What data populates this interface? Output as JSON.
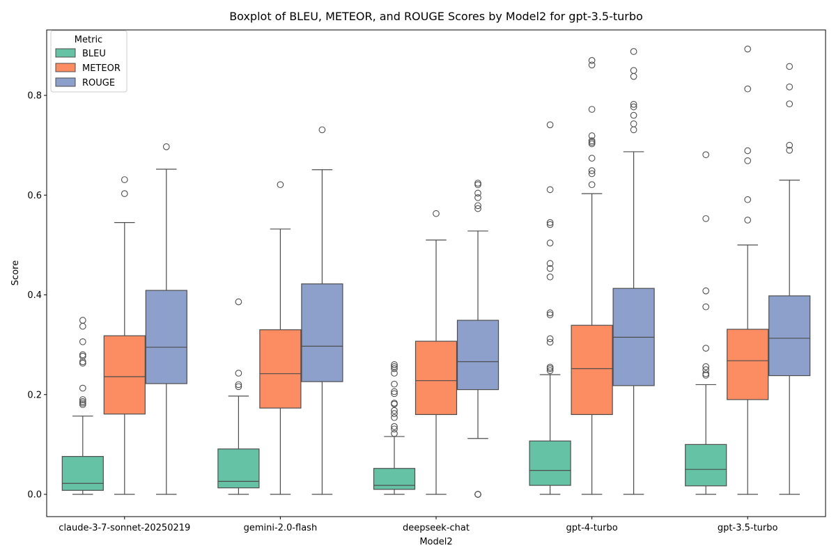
{
  "chart_data": {
    "type": "boxplot",
    "title": "Boxplot of BLEU, METEOR, and ROUGE Scores by Model2 for gpt-3.5-turbo",
    "xlabel": "Model2",
    "ylabel": "Score",
    "ylim": [
      -0.045,
      0.945
    ],
    "yticks": [
      "0.0",
      "0.2",
      "0.4",
      "0.6",
      "0.8"
    ],
    "legend": {
      "title": "Metric",
      "position": "top-left",
      "entries": [
        "BLEU",
        "METEOR",
        "ROUGE"
      ]
    },
    "colors": {
      "BLEU": "#66c2a5",
      "METEOR": "#fc8d62",
      "ROUGE": "#8da0cb",
      "edge": "#4d4d4d"
    },
    "categories": [
      "claude-3-7-sonnet-20250219",
      "gemini-2.0-flash",
      "deepseek-chat",
      "gpt-4-turbo",
      "gpt-3.5-turbo"
    ],
    "series": [
      {
        "name": "BLEU",
        "boxes": [
          {
            "whislo": 0.0,
            "q1": 0.008,
            "med": 0.022,
            "q3": 0.076,
            "whishi": 0.157,
            "fliers": [
              0.349,
              0.337,
              0.306,
              0.28,
              0.277,
              0.266,
              0.263,
              0.213,
              0.19,
              0.186,
              0.183,
              0.18
            ]
          },
          {
            "whislo": 0.0,
            "q1": 0.013,
            "med": 0.026,
            "q3": 0.091,
            "whishi": 0.197,
            "fliers": [
              0.386,
              0.243,
              0.22,
              0.216
            ]
          },
          {
            "whislo": 0.0,
            "q1": 0.01,
            "med": 0.018,
            "q3": 0.052,
            "whishi": 0.116,
            "fliers": [
              0.26,
              0.256,
              0.252,
              0.243,
              0.221,
              0.206,
              0.202,
              0.183,
              0.181,
              0.168,
              0.162,
              0.154,
              0.136,
              0.131,
              0.122
            ]
          },
          {
            "whislo": 0.0,
            "q1": 0.018,
            "med": 0.048,
            "q3": 0.107,
            "whishi": 0.24,
            "fliers": [
              0.741,
              0.611,
              0.545,
              0.541,
              0.504,
              0.463,
              0.453,
              0.436,
              0.364,
              0.36,
              0.312,
              0.305,
              0.255,
              0.252,
              0.248
            ]
          },
          {
            "whislo": 0.0,
            "q1": 0.017,
            "med": 0.05,
            "q3": 0.1,
            "whishi": 0.22,
            "fliers": [
              0.681,
              0.553,
              0.408,
              0.376,
              0.293,
              0.256,
              0.25,
              0.242,
              0.239
            ]
          }
        ]
      },
      {
        "name": "METEOR",
        "boxes": [
          {
            "whislo": 0.0,
            "q1": 0.161,
            "med": 0.236,
            "q3": 0.318,
            "whishi": 0.545,
            "fliers": [
              0.631,
              0.603
            ]
          },
          {
            "whislo": 0.0,
            "q1": 0.173,
            "med": 0.242,
            "q3": 0.33,
            "whishi": 0.532,
            "fliers": [
              0.621
            ]
          },
          {
            "whislo": 0.0,
            "q1": 0.16,
            "med": 0.228,
            "q3": 0.307,
            "whishi": 0.51,
            "fliers": [
              0.563
            ]
          },
          {
            "whislo": 0.0,
            "q1": 0.16,
            "med": 0.252,
            "q3": 0.339,
            "whishi": 0.603,
            "fliers": [
              0.87,
              0.861,
              0.772,
              0.719,
              0.709,
              0.706,
              0.703,
              0.674,
              0.649,
              0.643,
              0.621
            ]
          },
          {
            "whislo": 0.0,
            "q1": 0.19,
            "med": 0.268,
            "q3": 0.331,
            "whishi": 0.5,
            "fliers": [
              0.893,
              0.813,
              0.689,
              0.669,
              0.591,
              0.55
            ]
          }
        ]
      },
      {
        "name": "ROUGE",
        "boxes": [
          {
            "whislo": 0.0,
            "q1": 0.222,
            "med": 0.295,
            "q3": 0.409,
            "whishi": 0.652,
            "fliers": [
              0.697
            ]
          },
          {
            "whislo": 0.0,
            "q1": 0.226,
            "med": 0.297,
            "q3": 0.422,
            "whishi": 0.651,
            "fliers": [
              0.731
            ]
          },
          {
            "whislo": 0.112,
            "q1": 0.21,
            "med": 0.266,
            "q3": 0.349,
            "whishi": 0.528,
            "fliers": [
              0.624,
              0.621,
              0.604,
              0.595,
              0.579,
              0.573,
              0.0,
              0.0,
              0.0
            ]
          },
          {
            "whislo": 0.0,
            "q1": 0.218,
            "med": 0.315,
            "q3": 0.413,
            "whishi": 0.687,
            "fliers": [
              0.888,
              0.85,
              0.838,
              0.782,
              0.777,
              0.76,
              0.743,
              0.731
            ]
          },
          {
            "whislo": 0.0,
            "q1": 0.238,
            "med": 0.313,
            "q3": 0.398,
            "whishi": 0.63,
            "fliers": [
              0.858,
              0.817,
              0.783,
              0.7,
              0.69
            ]
          }
        ]
      }
    ]
  }
}
